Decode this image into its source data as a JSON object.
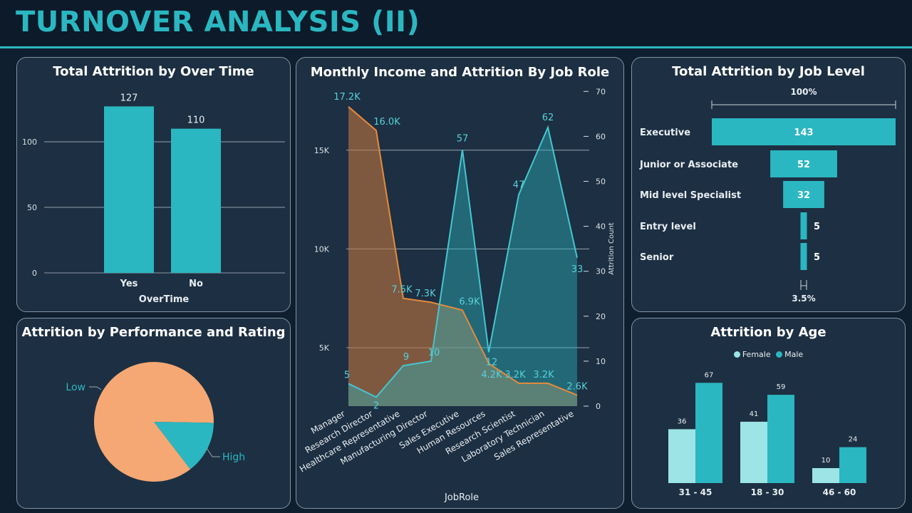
{
  "page": {
    "title": "TURNOVER ANALYSIS (II)"
  },
  "colors": {
    "teal": "#2ab7c1",
    "light_teal": "#9ce4e5",
    "orange": "#f5a873",
    "income_line": "#e58a3b",
    "panel": "#1d2f42",
    "background": "#0f1f30"
  },
  "overtime": {
    "title": "Total Attrition by Over Time",
    "chart_data": {
      "type": "bar",
      "categories": [
        "Yes",
        "No"
      ],
      "values": [
        127,
        110
      ],
      "xlabel": "OverTime",
      "ylabel": "",
      "ylim": [
        0,
        140
      ],
      "yticks": [
        0,
        50,
        100
      ],
      "grid": true
    }
  },
  "performance": {
    "title": "Attrition by Performance and Rating",
    "chart_data": {
      "type": "pie",
      "labels": [
        "Low",
        "High"
      ],
      "values": [
        85.7,
        14.3
      ],
      "colors": [
        "#f5a873",
        "#2ab7c1"
      ]
    }
  },
  "income": {
    "title": "Monthly Income and Attrition By Job Role",
    "chart_data": {
      "type": "area",
      "categories": [
        "Manager",
        "Research Director",
        "Healthcare Representative",
        "Manufacturing Director",
        "Sales Executive",
        "Human Resources",
        "Research Scientist",
        "Laboratory Technician",
        "Sales Representative"
      ],
      "series": [
        {
          "values": [
            17200,
            16000,
            7500,
            7300,
            6900,
            4200,
            3200,
            3200,
            2600
          ],
          "labels": [
            "17.2K",
            "16.0K",
            "7.5K",
            "7.3K",
            "6.9K",
            "4.2K",
            "3.2K",
            "3.2K",
            "2.6K"
          ],
          "axis": "left"
        },
        {
          "values": [
            5,
            2,
            9,
            10,
            57,
            12,
            47,
            62,
            33
          ],
          "axis": "right"
        }
      ],
      "xlabel": "JobRole",
      "ylabel_right": "Attrition Count",
      "ylim_left": [
        1000,
        17200
      ],
      "yticks_left": [
        5000,
        10000,
        15000
      ],
      "ytick_labels_left": [
        "5K",
        "10K",
        "15K"
      ],
      "ylim_right": [
        0,
        70
      ],
      "yticks_right": [
        0,
        10,
        20,
        30,
        40,
        50,
        60,
        70
      ],
      "grid": true
    }
  },
  "joblevel": {
    "title": "Total Attrition by Job Level",
    "top_label": "100%",
    "bottom_label": "3.5%",
    "chart_data": {
      "type": "bar",
      "orientation": "funnel",
      "categories": [
        "Executive",
        "Junior or Associate",
        "Mid level Specialist",
        "Entry level",
        "Senior"
      ],
      "values": [
        143,
        52,
        32,
        5,
        5
      ]
    }
  },
  "age": {
    "title": "Attrition by Age",
    "legend": [
      "Female",
      "Male"
    ],
    "chart_data": {
      "type": "bar",
      "categories": [
        "31 - 45",
        "18 - 30",
        "46 - 60"
      ],
      "series": [
        {
          "name": "Female",
          "values": [
            36,
            41,
            10
          ]
        },
        {
          "name": "Male",
          "values": [
            67,
            59,
            24
          ]
        }
      ],
      "legend": "top"
    }
  }
}
